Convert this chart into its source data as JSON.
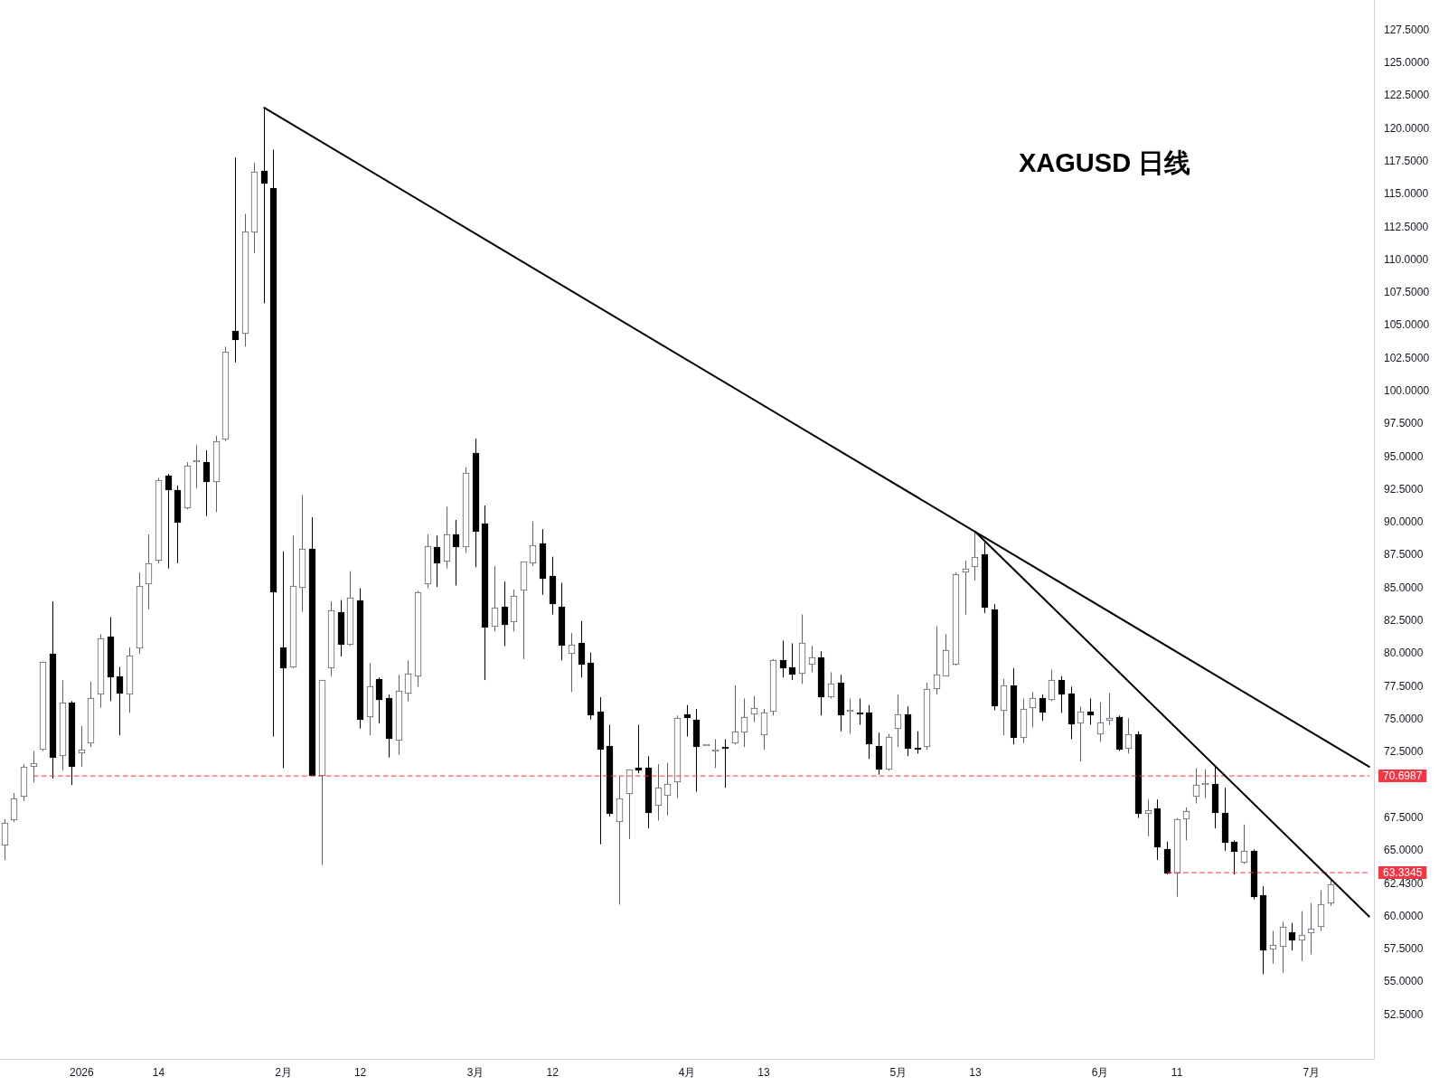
{
  "chart_data": {
    "type": "candlestick",
    "title": "XAGUSD 日线",
    "categories": [
      null,
      null,
      null,
      null,
      null,
      null,
      null,
      null,
      "2026",
      null,
      null,
      null,
      null,
      null,
      null,
      null,
      "14",
      null,
      null,
      null,
      null,
      null,
      null,
      null,
      null,
      null,
      null,
      null,
      null,
      "2月",
      null,
      null,
      null,
      null,
      null,
      null,
      null,
      "12",
      null,
      null,
      null,
      null,
      null,
      null,
      null,
      null,
      null,
      null,
      null,
      "3月",
      null,
      null,
      null,
      null,
      null,
      null,
      null,
      "12",
      null,
      null,
      null,
      null,
      null,
      null,
      null,
      null,
      null,
      null,
      null,
      null,
      null,
      "4月",
      null,
      null,
      null,
      null,
      null,
      null,
      null,
      "13",
      null,
      null,
      null,
      null,
      null,
      null,
      null,
      null,
      null,
      null,
      null,
      null,
      null,
      "5月",
      null,
      null,
      null,
      null,
      null,
      null,
      null,
      "13",
      null,
      null,
      null,
      null,
      null,
      null,
      null,
      null,
      null,
      null,
      null,
      null,
      "6月",
      null,
      null,
      null,
      null,
      null,
      null,
      null,
      "11",
      null,
      null,
      null,
      null,
      null,
      null,
      null,
      null,
      null,
      null,
      null,
      null,
      null,
      "7月",
      null,
      null,
      null,
      null,
      null,
      null
    ],
    "ohlc": [
      [
        65.4,
        67.4,
        64.3,
        67.1
      ],
      [
        67.3,
        69.4,
        67.2,
        69.0
      ],
      [
        69.1,
        71.6,
        68.8,
        71.4
      ],
      [
        71.4,
        72.6,
        70.2,
        71.7
      ],
      [
        72.7,
        79.4,
        72.6,
        79.4
      ],
      [
        80.0,
        84.0,
        70.5,
        72.1
      ],
      [
        72.2,
        78.0,
        71.1,
        76.3
      ],
      [
        76.3,
        76.4,
        70.0,
        71.4
      ],
      [
        72.4,
        74.5,
        71.4,
        72.7
      ],
      [
        73.2,
        77.9,
        72.9,
        76.6
      ],
      [
        76.9,
        81.5,
        75.9,
        81.2
      ],
      [
        81.3,
        82.8,
        76.4,
        78.2
      ],
      [
        78.3,
        79.0,
        73.8,
        77.0
      ],
      [
        76.9,
        80.5,
        75.5,
        79.9
      ],
      [
        80.4,
        86.2,
        80.0,
        85.2
      ],
      [
        85.3,
        89.1,
        83.4,
        86.9
      ],
      [
        87.1,
        93.4,
        86.9,
        93.2
      ],
      [
        93.6,
        93.7,
        86.5,
        92.5
      ],
      [
        92.5,
        92.8,
        86.9,
        90.0
      ],
      [
        91.1,
        94.6,
        91.0,
        94.3
      ],
      [
        94.6,
        95.9,
        92.6,
        94.6
      ],
      [
        94.6,
        95.5,
        90.5,
        93.1
      ],
      [
        93.1,
        96.6,
        90.8,
        96.2
      ],
      [
        96.3,
        103.4,
        96.2,
        103.0
      ],
      [
        104.6,
        117.8,
        102.2,
        103.9
      ],
      [
        104.4,
        113.5,
        103.4,
        112.2
      ],
      [
        112.1,
        117.4,
        110.5,
        116.7
      ],
      [
        116.8,
        121.6,
        106.7,
        115.8
      ],
      [
        115.5,
        118.4,
        73.7,
        84.7
      ],
      [
        80.5,
        87.8,
        71.3,
        78.9
      ],
      [
        79.0,
        89.0,
        78.9,
        85.2
      ],
      [
        85.0,
        92.1,
        83.2,
        88.0
      ],
      [
        88.0,
        90.4,
        70.7,
        70.7
      ],
      [
        70.7,
        78.0,
        63.9,
        78.0
      ],
      [
        78.9,
        84.0,
        78.3,
        83.3
      ],
      [
        83.2,
        84.1,
        79.8,
        80.7
      ],
      [
        80.7,
        86.3,
        80.6,
        84.3
      ],
      [
        84.1,
        85.0,
        74.3,
        75.0
      ],
      [
        75.2,
        79.3,
        73.8,
        77.5
      ],
      [
        78.1,
        78.2,
        74.7,
        76.5
      ],
      [
        76.6,
        76.9,
        72.1,
        73.5
      ],
      [
        73.4,
        78.4,
        72.3,
        77.2
      ],
      [
        77.0,
        79.5,
        76.4,
        78.5
      ],
      [
        78.3,
        84.8,
        77.5,
        84.7
      ],
      [
        85.3,
        89.1,
        85.0,
        88.2
      ],
      [
        88.1,
        89.0,
        85.1,
        86.9
      ],
      [
        87.0,
        91.2,
        86.5,
        89.1
      ],
      [
        89.1,
        90.2,
        85.2,
        88.1
      ],
      [
        88.1,
        94.2,
        87.7,
        93.8
      ],
      [
        95.3,
        96.4,
        86.6,
        89.3
      ],
      [
        89.9,
        91.3,
        78.0,
        82.0
      ],
      [
        82.1,
        86.7,
        81.7,
        83.5
      ],
      [
        83.6,
        85.5,
        80.6,
        82.2
      ],
      [
        82.4,
        84.9,
        81.7,
        84.4
      ],
      [
        84.8,
        87.0,
        79.6,
        87.0
      ],
      [
        86.9,
        90.1,
        86.7,
        88.3
      ],
      [
        88.4,
        89.5,
        84.5,
        85.7
      ],
      [
        85.9,
        87.4,
        83.0,
        83.8
      ],
      [
        83.6,
        85.4,
        79.5,
        80.6
      ],
      [
        80.0,
        81.6,
        77.1,
        80.7
      ],
      [
        80.8,
        82.5,
        78.2,
        79.2
      ],
      [
        79.3,
        80.1,
        75.0,
        75.3
      ],
      [
        75.6,
        76.7,
        65.5,
        72.7
      ],
      [
        73.0,
        74.6,
        67.6,
        67.8
      ],
      [
        67.2,
        70.7,
        60.9,
        69.0
      ],
      [
        69.3,
        71.2,
        65.9,
        71.2
      ],
      [
        71.3,
        74.6,
        70.9,
        71.1
      ],
      [
        71.3,
        72.2,
        66.7,
        67.9
      ],
      [
        68.4,
        71.6,
        67.3,
        69.8
      ],
      [
        69.2,
        71.7,
        67.7,
        70.1
      ],
      [
        70.2,
        75.3,
        69.0,
        75.1
      ],
      [
        75.4,
        76.1,
        73.7,
        75.1
      ],
      [
        75.0,
        75.8,
        69.5,
        72.9
      ],
      [
        73.0,
        73.0,
        73.0,
        73.0
      ],
      [
        72.6,
        73.5,
        71.3,
        72.7
      ],
      [
        72.9,
        73.5,
        69.8,
        72.8
      ],
      [
        73.2,
        77.6,
        73.1,
        74.1
      ],
      [
        74.0,
        76.6,
        72.9,
        75.2
      ],
      [
        75.4,
        76.8,
        74.8,
        75.9
      ],
      [
        73.8,
        75.8,
        72.7,
        75.5
      ],
      [
        75.6,
        79.6,
        75.3,
        79.5
      ],
      [
        79.5,
        81.0,
        78.2,
        78.9
      ],
      [
        79.0,
        80.8,
        78.0,
        78.4
      ],
      [
        78.5,
        83.0,
        77.7,
        80.8
      ],
      [
        79.2,
        80.6,
        78.6,
        79.7
      ],
      [
        79.7,
        80.2,
        75.3,
        76.7
      ],
      [
        76.7,
        78.6,
        76.6,
        77.7
      ],
      [
        77.8,
        78.4,
        74.1,
        75.3
      ],
      [
        75.6,
        76.6,
        73.9,
        75.7
      ],
      [
        75.5,
        76.6,
        74.6,
        75.4
      ],
      [
        75.5,
        76.1,
        72.0,
        73.1
      ],
      [
        73.0,
        74.0,
        70.8,
        71.2
      ],
      [
        71.2,
        73.9,
        71.1,
        73.7
      ],
      [
        74.3,
        76.9,
        72.9,
        75.4
      ],
      [
        75.4,
        76.0,
        72.2,
        72.8
      ],
      [
        72.8,
        74.1,
        72.4,
        72.7
      ],
      [
        72.9,
        77.8,
        72.7,
        77.3
      ],
      [
        77.3,
        82.1,
        76.9,
        78.4
      ],
      [
        78.3,
        81.5,
        78.3,
        80.3
      ],
      [
        79.2,
        86.2,
        79.1,
        86.1
      ],
      [
        86.2,
        87.1,
        83.0,
        86.5
      ],
      [
        86.6,
        89.3,
        85.6,
        87.4
      ],
      [
        87.6,
        88.5,
        83.1,
        83.5
      ],
      [
        83.4,
        83.8,
        75.7,
        76.0
      ],
      [
        75.7,
        78.1,
        73.8,
        77.6
      ],
      [
        77.6,
        78.9,
        73.1,
        73.6
      ],
      [
        73.6,
        76.6,
        73.2,
        75.8
      ],
      [
        75.9,
        77.1,
        74.4,
        76.6
      ],
      [
        76.6,
        76.9,
        74.9,
        75.5
      ],
      [
        76.5,
        78.8,
        76.4,
        78.0
      ],
      [
        78.0,
        78.3,
        75.5,
        76.9
      ],
      [
        77.0,
        77.5,
        73.5,
        74.6
      ],
      [
        74.7,
        76.0,
        71.8,
        75.6
      ],
      [
        75.6,
        76.6,
        74.6,
        75.3
      ],
      [
        73.9,
        76.3,
        73.3,
        74.8
      ],
      [
        74.9,
        77.0,
        74.6,
        75.1
      ],
      [
        75.2,
        75.3,
        72.6,
        72.7
      ],
      [
        72.8,
        75.1,
        72.4,
        73.9
      ],
      [
        73.9,
        74.1,
        67.5,
        67.8
      ],
      [
        67.8,
        68.9,
        66.1,
        68.1
      ],
      [
        68.2,
        68.9,
        64.3,
        65.3
      ],
      [
        65.1,
        65.7,
        63.2,
        63.3
      ],
      [
        63.3,
        67.5,
        61.5,
        67.4
      ],
      [
        67.4,
        68.3,
        65.8,
        68.0
      ],
      [
        69.1,
        71.3,
        68.6,
        70.0
      ],
      [
        70.0,
        71.2,
        69.0,
        70.0
      ],
      [
        70.1,
        71.5,
        66.7,
        67.9
      ],
      [
        67.9,
        69.8,
        65.0,
        65.6
      ],
      [
        65.7,
        65.8,
        63.2,
        64.9
      ],
      [
        64.1,
        67.0,
        64.0,
        65.0
      ],
      [
        65.0,
        65.1,
        61.3,
        61.5
      ],
      [
        61.6,
        62.3,
        55.6,
        57.4
      ],
      [
        57.5,
        58.9,
        56.4,
        57.8
      ],
      [
        57.7,
        59.6,
        55.7,
        59.2
      ],
      [
        58.8,
        59.5,
        57.4,
        58.2
      ],
      [
        58.2,
        60.4,
        56.6,
        58.6
      ],
      [
        58.7,
        61.0,
        57.1,
        59.1
      ],
      [
        59.2,
        62.0,
        58.9,
        60.9
      ],
      [
        61.0,
        62.8,
        60.8,
        62.43
      ],
      null,
      null,
      null,
      null
    ],
    "colors": [
      "#5d606b",
      "#5d606b",
      "#5d606b",
      "#5d606b",
      "#5d606b",
      "#000000",
      "#5d606b",
      "#000000",
      "#5d606b",
      "#5d606b",
      "#5d606b",
      "#000000",
      "#000000",
      "#5d606b",
      "#5d606b",
      "#5d606b",
      "#5d606b",
      "#000000",
      "#000000",
      "#5d606b",
      "#5d606b",
      "#000000",
      "#5d606b",
      "#5d606b",
      "#000000",
      "#5d606b",
      "#5d606b",
      "#000000",
      "#000000",
      "#000000",
      "#5d606b",
      "#5d606b",
      "#000000",
      "#5d606b",
      "#5d606b",
      "#000000",
      "#5d606b",
      "#000000",
      "#5d606b",
      "#000000",
      "#000000",
      "#5d606b",
      "#5d606b",
      "#5d606b",
      "#5d606b",
      "#000000",
      "#5d606b",
      "#000000",
      "#5d606b",
      "#000000",
      "#000000",
      "#5d606b",
      "#000000",
      "#5d606b",
      "#5d606b",
      "#5d606b",
      "#000000",
      "#000000",
      "#000000",
      "#5d606b",
      "#000000",
      "#000000",
      "#000000",
      "#000000",
      "#5d606b",
      "#5d606b",
      "#000000",
      "#000000",
      "#5d606b",
      "#5d606b",
      "#5d606b",
      "#000000",
      "#000000",
      "#5d606b",
      "#5d606b",
      "#000000",
      "#5d606b",
      "#5d606b",
      "#5d606b",
      "#5d606b",
      "#5d606b",
      "#000000",
      "#000000",
      "#5d606b",
      "#5d606b",
      "#000000",
      "#5d606b",
      "#000000",
      "#5d606b",
      "#000000",
      "#000000",
      "#000000",
      "#5d606b",
      "#5d606b",
      "#000000",
      "#000000",
      "#5d606b",
      "#5d606b",
      "#5d606b",
      "#5d606b",
      "#5d606b",
      "#5d606b",
      "#000000",
      "#000000",
      "#5d606b",
      "#000000",
      "#5d606b",
      "#5d606b",
      "#000000",
      "#5d606b",
      "#000000",
      "#000000",
      "#5d606b",
      "#000000",
      "#5d606b",
      "#5d606b",
      "#000000",
      "#5d606b",
      "#000000",
      "#5d606b",
      "#000000",
      "#000000",
      "#5d606b",
      "#5d606b",
      "#5d606b",
      "#5d606b",
      "#000000",
      "#000000",
      "#000000",
      "#5d606b",
      "#000000",
      "#000000",
      "#5d606b",
      "#5d606b",
      "#000000",
      "#5d606b",
      "#5d606b",
      "#5d606b",
      "#5d606b",
      null,
      null,
      null,
      null
    ],
    "ylim": [
      49.15,
      129.8
    ],
    "yticks": [
      {
        "value": 52.5,
        "label": "52.5000"
      },
      {
        "value": 55,
        "label": "55.0000"
      },
      {
        "value": 57.5,
        "label": "57.5000"
      },
      {
        "value": 60,
        "label": "60.0000"
      },
      {
        "value": 62.43,
        "label": "62.4300"
      },
      {
        "value": 65,
        "label": "65.0000"
      },
      {
        "value": 67.5,
        "label": "67.5000"
      },
      {
        "value": 72.5,
        "label": "72.5000"
      },
      {
        "value": 75,
        "label": "75.0000"
      },
      {
        "value": 77.5,
        "label": "77.5000"
      },
      {
        "value": 80,
        "label": "80.0000"
      },
      {
        "value": 82.5,
        "label": "82.5000"
      },
      {
        "value": 85,
        "label": "85.0000"
      },
      {
        "value": 87.5,
        "label": "87.5000"
      },
      {
        "value": 90,
        "label": "90.0000"
      },
      {
        "value": 92.5,
        "label": "92.5000"
      },
      {
        "value": 95,
        "label": "95.0000"
      },
      {
        "value": 97.5,
        "label": "97.5000"
      },
      {
        "value": 100,
        "label": "100.0000"
      },
      {
        "value": 102.5,
        "label": "102.5000"
      },
      {
        "value": 105,
        "label": "105.0000"
      },
      {
        "value": 107.5,
        "label": "107.5000"
      },
      {
        "value": 110,
        "label": "110.0000"
      },
      {
        "value": 112.5,
        "label": "112.5000"
      },
      {
        "value": 115,
        "label": "115.0000"
      },
      {
        "value": 117.5,
        "label": "117.5000"
      },
      {
        "value": 120,
        "label": "120.0000"
      },
      {
        "value": 122.5,
        "label": "122.5000"
      },
      {
        "value": 125,
        "label": "125.0000"
      },
      {
        "value": 127.5,
        "label": "127.5000"
      }
    ],
    "series": [
      {
        "type": "line",
        "color": "#000000",
        "values": [
          null,
          null,
          null,
          null,
          null,
          null,
          null,
          null,
          null,
          null,
          null,
          null,
          null,
          null,
          null,
          null,
          null,
          null,
          null,
          null,
          null,
          null,
          null,
          null,
          null,
          null,
          null,
          121.6,
          null,
          null,
          null,
          null,
          null,
          null,
          null,
          null,
          null,
          null,
          null,
          null,
          null,
          null,
          null,
          null,
          null,
          null,
          null,
          null,
          null,
          null,
          null,
          null,
          null,
          null,
          null,
          null,
          null,
          null,
          null,
          null,
          null,
          null,
          null,
          null,
          null,
          null,
          null,
          null,
          null,
          null,
          null,
          null,
          null,
          null,
          null,
          null,
          null,
          null,
          null,
          null,
          null,
          null,
          null,
          null,
          null,
          null,
          null,
          null,
          null,
          null,
          null,
          null,
          null,
          null,
          null,
          null,
          null,
          null,
          null,
          null,
          null,
          null,
          null,
          null,
          null,
          null,
          null,
          null,
          null,
          null,
          null,
          null,
          null,
          null,
          null,
          null,
          null,
          null,
          null,
          null,
          null,
          null,
          null,
          null,
          null,
          null,
          null,
          null,
          null,
          null,
          null,
          null,
          null,
          null,
          null,
          null,
          null,
          null,
          null,
          null,
          null,
          null,
          71.4
        ]
      },
      {
        "type": "line",
        "color": "#000000",
        "values": [
          null,
          null,
          null,
          null,
          null,
          null,
          null,
          null,
          null,
          null,
          null,
          null,
          null,
          null,
          null,
          null,
          null,
          null,
          null,
          null,
          null,
          null,
          null,
          null,
          null,
          null,
          null,
          null,
          null,
          null,
          null,
          null,
          null,
          null,
          null,
          null,
          null,
          null,
          null,
          null,
          null,
          null,
          null,
          null,
          null,
          null,
          null,
          null,
          null,
          null,
          null,
          null,
          null,
          null,
          null,
          null,
          null,
          null,
          null,
          null,
          null,
          null,
          null,
          null,
          null,
          null,
          null,
          null,
          null,
          null,
          null,
          null,
          null,
          null,
          null,
          null,
          null,
          null,
          null,
          null,
          null,
          null,
          null,
          null,
          null,
          null,
          null,
          null,
          null,
          null,
          null,
          null,
          null,
          null,
          null,
          null,
          null,
          null,
          null,
          null,
          null,
          89.3,
          null,
          null,
          null,
          null,
          null,
          null,
          null,
          null,
          null,
          null,
          null,
          null,
          null,
          null,
          null,
          null,
          null,
          null,
          null,
          null,
          null,
          null,
          null,
          null,
          null,
          null,
          null,
          null,
          null,
          null,
          null,
          null,
          null,
          null,
          null,
          null,
          null,
          null,
          null,
          null,
          60.0
        ]
      },
      {
        "type": "line",
        "color": "#f23645",
        "line_style": "dashed",
        "values": [
          null,
          null,
          null,
          70.6987,
          null,
          null,
          null,
          null,
          null,
          null,
          null,
          null,
          null,
          null,
          null,
          null,
          null,
          null,
          null,
          null,
          null,
          null,
          null,
          null,
          null,
          null,
          null,
          null,
          null,
          null,
          null,
          null,
          null,
          null,
          null,
          null,
          null,
          null,
          null,
          null,
          null,
          null,
          null,
          null,
          null,
          null,
          null,
          null,
          null,
          null,
          null,
          null,
          null,
          null,
          null,
          null,
          null,
          null,
          null,
          null,
          null,
          null,
          null,
          null,
          null,
          null,
          null,
          null,
          null,
          null,
          null,
          null,
          null,
          null,
          null,
          null,
          null,
          null,
          null,
          null,
          null,
          null,
          null,
          null,
          null,
          null,
          null,
          null,
          null,
          null,
          null,
          null,
          null,
          null,
          null,
          null,
          null,
          null,
          null,
          null,
          null,
          null,
          null,
          null,
          null,
          null,
          null,
          null,
          null,
          null,
          null,
          null,
          null,
          null,
          null,
          null,
          null,
          null,
          null,
          null,
          null,
          null,
          null,
          null,
          null,
          null,
          null,
          null,
          null,
          null,
          null,
          null,
          null,
          null,
          null,
          null,
          null,
          null,
          null,
          null,
          null,
          null,
          70.6987
        ],
        "value_labels": [
          null,
          null,
          null,
          null,
          null,
          null,
          null,
          null,
          null,
          null,
          null,
          null,
          null,
          null,
          null,
          null,
          null,
          null,
          null,
          null,
          null,
          null,
          null,
          null,
          null,
          null,
          null,
          null,
          null,
          null,
          null,
          null,
          null,
          null,
          null,
          null,
          null,
          null,
          null,
          null,
          null,
          null,
          null,
          null,
          null,
          null,
          null,
          null,
          null,
          null,
          null,
          null,
          null,
          null,
          null,
          null,
          null,
          null,
          null,
          null,
          null,
          null,
          null,
          null,
          null,
          null,
          null,
          null,
          null,
          null,
          null,
          null,
          null,
          null,
          null,
          null,
          null,
          null,
          null,
          null,
          null,
          null,
          null,
          null,
          null,
          null,
          null,
          null,
          null,
          null,
          null,
          null,
          null,
          null,
          null,
          null,
          null,
          null,
          null,
          null,
          null,
          null,
          null,
          null,
          null,
          null,
          null,
          null,
          null,
          null,
          null,
          null,
          null,
          null,
          null,
          null,
          null,
          null,
          null,
          null,
          null,
          null,
          null,
          null,
          null,
          null,
          null,
          null,
          null,
          null,
          null,
          null,
          null,
          null,
          null,
          null,
          null,
          null,
          null,
          null,
          null,
          null,
          "70.6987"
        ]
      },
      {
        "type": "line",
        "color": "#f23645",
        "line_style": "dashed",
        "values": [
          null,
          null,
          null,
          null,
          null,
          null,
          null,
          null,
          null,
          null,
          null,
          null,
          null,
          null,
          null,
          null,
          null,
          null,
          null,
          null,
          null,
          null,
          null,
          null,
          null,
          null,
          null,
          null,
          null,
          null,
          null,
          null,
          null,
          null,
          null,
          null,
          null,
          null,
          null,
          null,
          null,
          null,
          null,
          null,
          null,
          null,
          null,
          null,
          null,
          null,
          null,
          null,
          null,
          null,
          null,
          null,
          null,
          null,
          null,
          null,
          null,
          null,
          null,
          null,
          null,
          null,
          null,
          null,
          null,
          null,
          null,
          null,
          null,
          null,
          null,
          null,
          null,
          null,
          null,
          null,
          null,
          null,
          null,
          null,
          null,
          null,
          null,
          null,
          null,
          null,
          null,
          null,
          null,
          null,
          null,
          null,
          null,
          null,
          null,
          null,
          null,
          null,
          null,
          null,
          null,
          null,
          null,
          null,
          null,
          null,
          null,
          null,
          null,
          null,
          null,
          null,
          null,
          null,
          null,
          null,
          null,
          63.3345,
          null,
          null,
          null,
          null,
          null,
          null,
          null,
          null,
          null,
          null,
          null,
          null,
          null,
          null,
          null,
          null,
          null,
          null,
          null,
          null,
          63.3345
        ],
        "value_labels": [
          null,
          null,
          null,
          null,
          null,
          null,
          null,
          null,
          null,
          null,
          null,
          null,
          null,
          null,
          null,
          null,
          null,
          null,
          null,
          null,
          null,
          null,
          null,
          null,
          null,
          null,
          null,
          null,
          null,
          null,
          null,
          null,
          null,
          null,
          null,
          null,
          null,
          null,
          null,
          null,
          null,
          null,
          null,
          null,
          null,
          null,
          null,
          null,
          null,
          null,
          null,
          null,
          null,
          null,
          null,
          null,
          null,
          null,
          null,
          null,
          null,
          null,
          null,
          null,
          null,
          null,
          null,
          null,
          null,
          null,
          null,
          null,
          null,
          null,
          null,
          null,
          null,
          null,
          null,
          null,
          null,
          null,
          null,
          null,
          null,
          null,
          null,
          null,
          null,
          null,
          null,
          null,
          null,
          null,
          null,
          null,
          null,
          null,
          null,
          null,
          null,
          null,
          null,
          null,
          null,
          null,
          null,
          null,
          null,
          null,
          null,
          null,
          null,
          null,
          null,
          null,
          null,
          null,
          null,
          null,
          null,
          null,
          null,
          null,
          null,
          null,
          null,
          null,
          null,
          null,
          null,
          null,
          null,
          null,
          null,
          null,
          null,
          null,
          null,
          null,
          null,
          null,
          "63.3345"
        ]
      }
    ]
  }
}
